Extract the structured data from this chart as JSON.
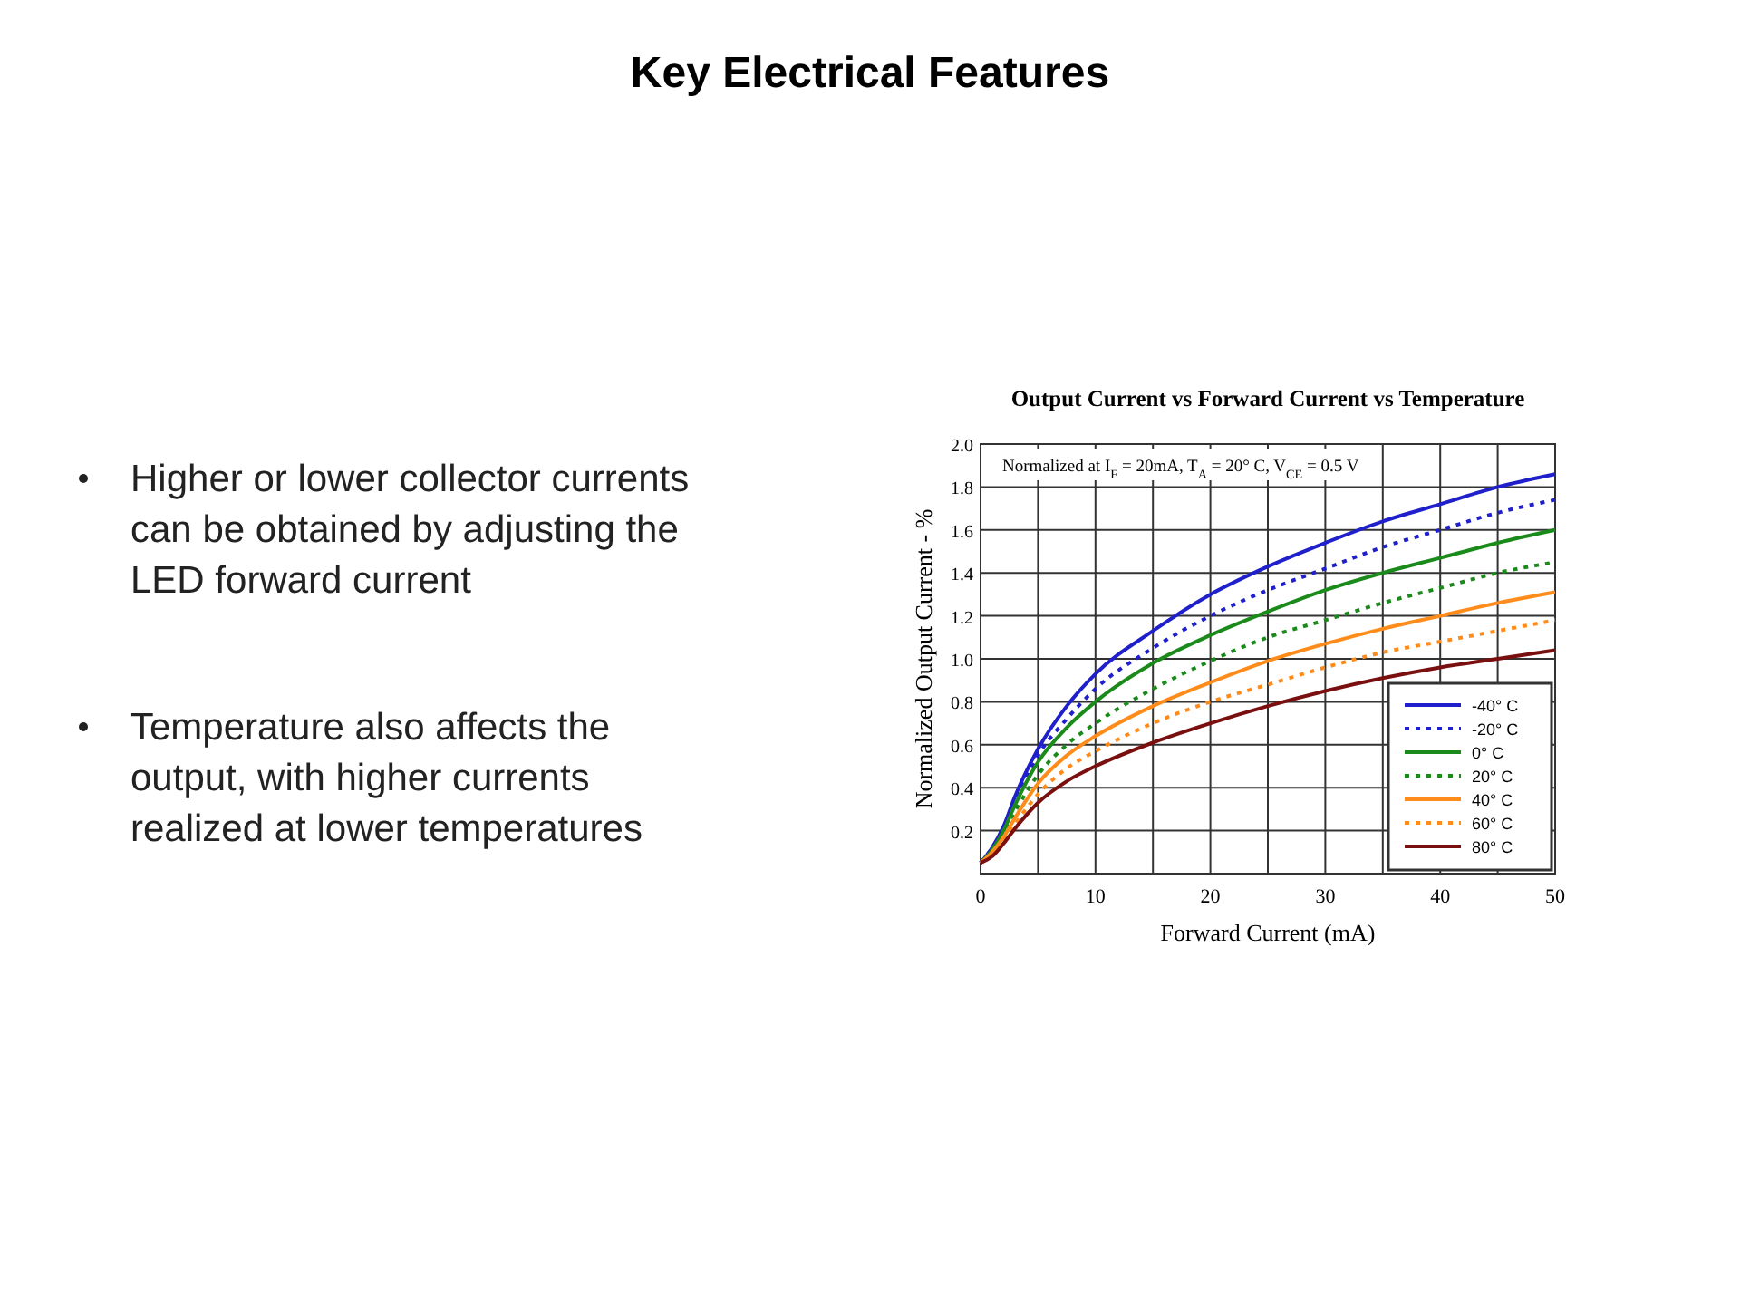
{
  "chart_data": {
    "type": "line",
    "title": "Key Electrical Features",
    "subtitle": "Output Current vs Forward Current vs Temperature",
    "xlabel": "Forward Current (mA)",
    "ylabel": "Normalized Output Current - %",
    "x": [
      0,
      1,
      2,
      3,
      5,
      7.5,
      10,
      15,
      20,
      25,
      30,
      35,
      40,
      45,
      50
    ],
    "xlim": [
      0,
      50
    ],
    "xticks": [
      0,
      {
        "value": 5,
        "label": null
      },
      10,
      {
        "value": 15,
        "label": null
      },
      20,
      {
        "value": 25,
        "label": null
      },
      30,
      {
        "value": 35,
        "label": null
      },
      40,
      {
        "value": 45,
        "label": null
      },
      50
    ],
    "ylim": [
      0,
      2.0
    ],
    "yticks": [
      {
        "value": 0,
        "label": null
      },
      0.2,
      0.4,
      0.6,
      0.8,
      {
        "value": 1,
        "label": "1.0"
      },
      1.2,
      1.4,
      1.6,
      1.8,
      {
        "value": 2,
        "label": "2.0"
      }
    ],
    "grid": true,
    "legend": "bottom right",
    "series": [
      {
        "name": "-40° C",
        "color": "#1f1fcc",
        "line_style": "solid",
        "values": [
          0.05,
          0.12,
          0.22,
          0.36,
          0.58,
          0.78,
          0.93,
          1.13,
          1.3,
          1.43,
          1.54,
          1.64,
          1.72,
          1.8,
          1.86
        ]
      },
      {
        "name": "-20° C",
        "color": "#1f1fcc",
        "line_style": "dotted",
        "values": [
          0.05,
          0.12,
          0.21,
          0.33,
          0.55,
          0.72,
          0.86,
          1.05,
          1.2,
          1.32,
          1.42,
          1.52,
          1.6,
          1.68,
          1.74
        ]
      },
      {
        "name": "0° C",
        "color": "#1a8a1a",
        "line_style": "solid",
        "values": [
          0.05,
          0.11,
          0.2,
          0.32,
          0.52,
          0.68,
          0.8,
          0.98,
          1.11,
          1.22,
          1.32,
          1.4,
          1.47,
          1.54,
          1.6
        ]
      },
      {
        "name": "20° C",
        "color": "#1a8a1a",
        "line_style": "dotted",
        "values": [
          0.05,
          0.1,
          0.19,
          0.29,
          0.46,
          0.6,
          0.7,
          0.86,
          0.99,
          1.1,
          1.18,
          1.26,
          1.33,
          1.4,
          1.45
        ]
      },
      {
        "name": "40° C",
        "color": "#ff8c1a",
        "line_style": "solid",
        "values": [
          0.05,
          0.1,
          0.17,
          0.26,
          0.42,
          0.55,
          0.64,
          0.78,
          0.89,
          0.99,
          1.07,
          1.14,
          1.2,
          1.26,
          1.31
        ]
      },
      {
        "name": "60° C",
        "color": "#ff8c1a",
        "line_style": "dotted",
        "values": [
          0.05,
          0.09,
          0.15,
          0.23,
          0.37,
          0.49,
          0.57,
          0.7,
          0.8,
          0.88,
          0.96,
          1.03,
          1.08,
          1.13,
          1.18
        ]
      },
      {
        "name": "80° C",
        "color": "#7a0f0f",
        "line_style": "solid",
        "values": [
          0.05,
          0.08,
          0.14,
          0.21,
          0.33,
          0.43,
          0.5,
          0.61,
          0.7,
          0.78,
          0.85,
          0.91,
          0.96,
          1.0,
          1.04
        ]
      }
    ],
    "annotations": [
      "Normalized at I$_{F}$ = 20mA, T$_{A}$ = 20° C, V$_{CE}$ = 0.5 V",
      "Higher or lower collector currents can be obtained by adjusting the LED forward current",
      "Temperature also affects the output, with higher currents realized at lower temperatures"
    ]
  }
}
